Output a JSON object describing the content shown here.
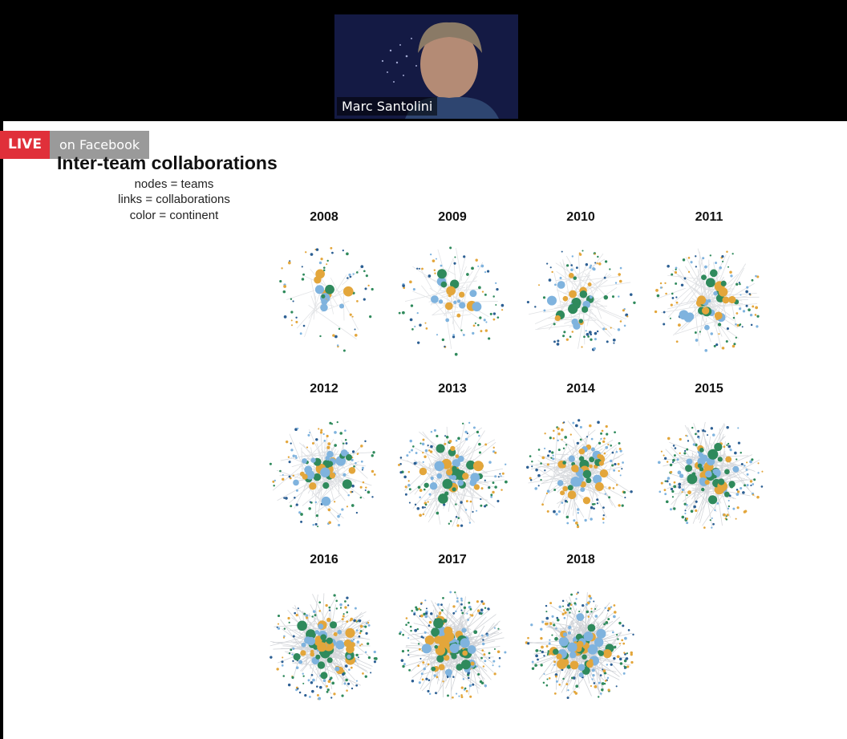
{
  "video": {
    "speaker_name": "Marc Santolini"
  },
  "live_badge": {
    "label": "LIVE",
    "source": "on Facebook"
  },
  "slide": {
    "title": "Inter-team collaborations",
    "legend": [
      "nodes = teams",
      "links = collaborations",
      "color = continent"
    ],
    "years": [
      "2008",
      "2009",
      "2010",
      "2011",
      "2012",
      "2013",
      "2014",
      "2015",
      "2016",
      "2017",
      "2018"
    ]
  },
  "colors": {
    "orange": "#e3a63b",
    "light_blue": "#7fb3de",
    "dark_blue": "#2c5f93",
    "green": "#2f8a5c",
    "link": "#c9ccd1",
    "live_red": "#e0303a"
  }
}
